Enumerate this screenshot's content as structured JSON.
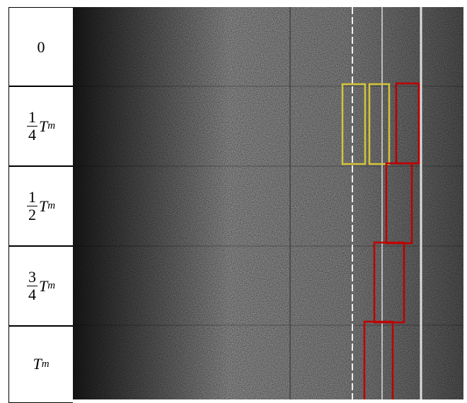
{
  "rows": [
    {
      "value": "0"
    },
    {
      "numerator": "1",
      "denominator": "4",
      "symbol": "T",
      "subscript": "m"
    },
    {
      "numerator": "1",
      "denominator": "2",
      "symbol": "T",
      "subscript": "m"
    },
    {
      "numerator": "3",
      "denominator": "4",
      "symbol": "T",
      "subscript": "m"
    },
    {
      "symbol": "T",
      "subscript": "m"
    }
  ]
}
